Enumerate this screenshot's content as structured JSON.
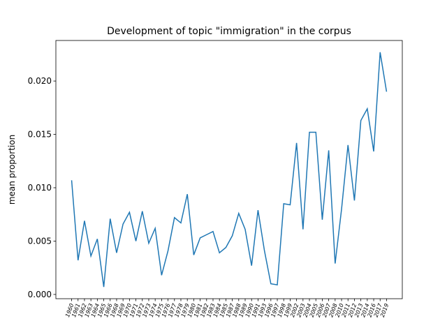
{
  "chart_data": {
    "type": "line",
    "title": "Development of topic \"immigration\" in the corpus",
    "ylabel": "mean proportion",
    "categories": [
      "1960",
      "1961",
      "1962",
      "1963",
      "1964",
      "1965",
      "1966",
      "1968",
      "1969",
      "1970",
      "1971",
      "1972",
      "1973",
      "1974",
      "1975",
      "1976",
      "1977",
      "1978",
      "1979",
      "1980",
      "1981",
      "1982",
      "1983",
      "1984",
      "1985",
      "1987",
      "1988",
      "1989",
      "1990",
      "1991",
      "1993",
      "1996",
      "1997",
      "1998",
      "1999",
      "2002",
      "2003",
      "2004",
      "2005",
      "2006",
      "2007",
      "2008",
      "2010",
      "2011",
      "2012",
      "2013",
      "2014",
      "2016",
      "2017",
      "2019"
    ],
    "series": [
      {
        "name": "mean proportion",
        "color": "#1f77b4",
        "values": [
          0.0107,
          0.0032,
          0.0069,
          0.0036,
          0.0052,
          0.0007,
          0.0071,
          0.0039,
          0.0066,
          0.0077,
          0.005,
          0.0078,
          0.0048,
          0.0062,
          0.0018,
          0.0041,
          0.0072,
          0.0067,
          0.0094,
          0.0037,
          0.0053,
          0.0056,
          0.0059,
          0.0039,
          0.0044,
          0.0055,
          0.0076,
          0.0061,
          0.0027,
          0.0079,
          0.0041,
          0.001,
          0.0009,
          0.0085,
          0.0084,
          0.0142,
          0.0061,
          0.0152,
          0.0152,
          0.007,
          0.0135,
          0.0029,
          0.008,
          0.014,
          0.0088,
          0.0163,
          0.0174,
          0.0134,
          0.0227,
          0.019
        ]
      }
    ],
    "ylim": [
      -0.0004,
      0.0238
    ],
    "yticks": [
      {
        "value": 0,
        "label": "0.000"
      },
      {
        "value": 0.005,
        "label": "0.005"
      },
      {
        "value": 0.01,
        "label": "0.010"
      },
      {
        "value": 0.015,
        "label": "0.015"
      },
      {
        "value": 0.02,
        "label": "0.020"
      }
    ],
    "grid": false
  }
}
